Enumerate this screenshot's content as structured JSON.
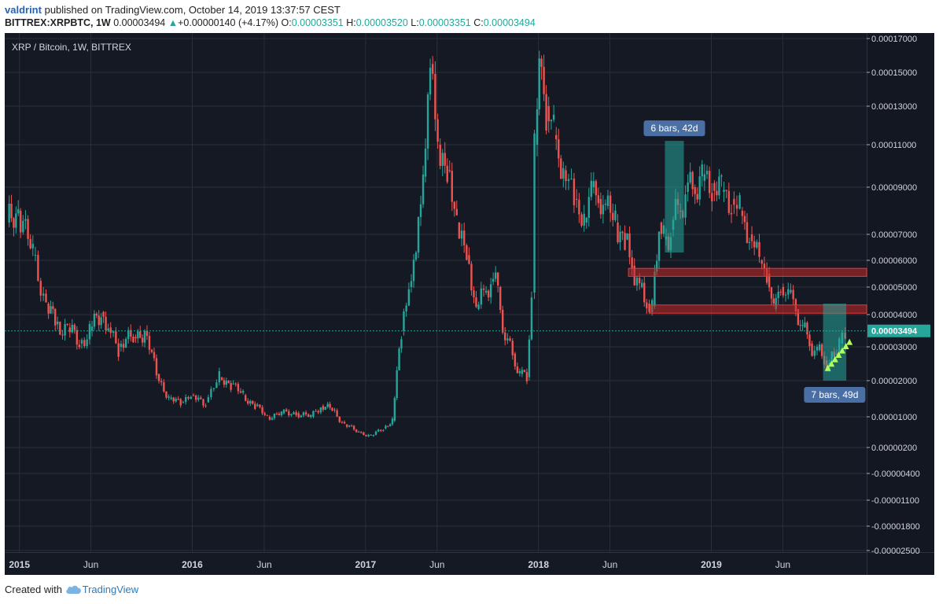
{
  "header": {
    "user": "valdrint",
    "published_text": "published on TradingView.com, October 14, 2019 13:37:57 CEST",
    "symbol": "BITTREX:XRPBTC, 1W",
    "last": "0.00003494",
    "change_arrow": "▲",
    "change": "+0.00000140 (+4.17%)",
    "o_label": "O:",
    "o_value": "0.00003351",
    "h_label": "H:",
    "h_value": "0.00003520",
    "l_label": "L:",
    "l_value": "0.00003351",
    "c_label": "C:",
    "c_value": "0.00003494"
  },
  "footer": {
    "created_with": "Created with",
    "brand": "TradingView",
    "brand_icon": "tradingview-cloud-icon"
  },
  "colors": {
    "background": "#151924",
    "grid": "#2a2e39",
    "up": "#26a69a",
    "down": "#ef5350",
    "zone": "#c62828",
    "box": "#26a69a",
    "label": "#4a6fa5",
    "price_tag": "#26a69a",
    "arrow": "#b2ff59"
  },
  "chart_data": {
    "type": "candlestick",
    "title": "XRP / Bitcoin, 1W, BITTREX",
    "y_scale": "inverted-log",
    "ylim": [
      -2.5e-05,
      0.00018
    ],
    "y_ticks": [
      "0.00017000",
      "0.00015000",
      "0.00013000",
      "0.00011000",
      "0.00009000",
      "0.00007000",
      "0.00006000",
      "0.00005000",
      "0.00004000",
      "0.00003000",
      "0.00002000",
      "0.00001000",
      "0.00000200",
      "-0.00000400",
      "-0.00001100",
      "-0.00001800",
      "-0.00002500"
    ],
    "y_tick_values": [
      0.00017,
      0.00015,
      0.00013,
      0.00011,
      9e-05,
      7e-05,
      6e-05,
      5e-05,
      4e-05,
      3e-05,
      2e-05,
      1e-05,
      2e-06,
      -4e-06,
      -1.1e-05,
      -1.8e-05,
      -2.5e-05
    ],
    "x_ticks": [
      {
        "label": "2015",
        "date": "2015-01-01",
        "bold": true
      },
      {
        "label": "Jun",
        "date": "2015-06-01",
        "bold": false
      },
      {
        "label": "2016",
        "date": "2016-01-01",
        "bold": true
      },
      {
        "label": "Jun",
        "date": "2016-06-01",
        "bold": false
      },
      {
        "label": "2017",
        "date": "2017-01-01",
        "bold": true
      },
      {
        "label": "Jun",
        "date": "2017-06-01",
        "bold": false
      },
      {
        "label": "2018",
        "date": "2018-01-01",
        "bold": true
      },
      {
        "label": "Jun",
        "date": "2018-06-01",
        "bold": false
      },
      {
        "label": "2019",
        "date": "2019-01-01",
        "bold": true
      },
      {
        "label": "Jun",
        "date": "2019-06-01",
        "bold": false
      }
    ],
    "xlim": [
      "2014-12-01",
      "2019-11-25"
    ],
    "price_line": {
      "value": 3.494e-05,
      "label": "0.00003494"
    },
    "series": [
      {
        "x": "2014-12-08",
        "close": 7.5e-05
      },
      {
        "x": "2015-01-01",
        "close": 8e-05
      },
      {
        "x": "2015-02-01",
        "close": 6.2e-05
      },
      {
        "x": "2015-03-01",
        "close": 4.4e-05
      },
      {
        "x": "2015-03-20",
        "close": 3.7e-05
      },
      {
        "x": "2015-04-15",
        "close": 3.6e-05
      },
      {
        "x": "2015-05-10",
        "close": 3.1e-05
      },
      {
        "x": "2015-06-01",
        "close": 3.5e-05
      },
      {
        "x": "2015-06-25",
        "close": 4.1e-05
      },
      {
        "x": "2015-07-10",
        "close": 3.6e-05
      },
      {
        "x": "2015-08-01",
        "close": 3e-05
      },
      {
        "x": "2015-09-01",
        "close": 3.3e-05
      },
      {
        "x": "2015-09-25",
        "close": 3.5e-05
      },
      {
        "x": "2015-10-20",
        "close": 2.2e-05
      },
      {
        "x": "2015-11-15",
        "close": 1.5e-05
      },
      {
        "x": "2015-12-10",
        "close": 1.4e-05
      },
      {
        "x": "2016-01-01",
        "close": 1.6e-05
      },
      {
        "x": "2016-02-01",
        "close": 1.4e-05
      },
      {
        "x": "2016-03-01",
        "close": 2.1e-05
      },
      {
        "x": "2016-03-25",
        "close": 1.9e-05
      },
      {
        "x": "2016-04-20",
        "close": 1.6e-05
      },
      {
        "x": "2016-05-15",
        "close": 1.3e-05
      },
      {
        "x": "2016-06-10",
        "close": 1e-05
      },
      {
        "x": "2016-07-10",
        "close": 1.1e-05
      },
      {
        "x": "2016-08-10",
        "close": 1.1e-05
      },
      {
        "x": "2016-09-10",
        "close": 1e-05
      },
      {
        "x": "2016-10-01",
        "close": 1.3e-05
      },
      {
        "x": "2016-10-25",
        "close": 1.2e-05
      },
      {
        "x": "2016-11-20",
        "close": 8e-06
      },
      {
        "x": "2016-12-20",
        "close": 6e-06
      },
      {
        "x": "2017-01-15",
        "close": 5e-06
      },
      {
        "x": "2017-02-10",
        "close": 7e-06
      },
      {
        "x": "2017-03-01",
        "close": 9e-06
      },
      {
        "x": "2017-03-20",
        "close": 3.5e-05
      },
      {
        "x": "2017-04-05",
        "close": 5e-05
      },
      {
        "x": "2017-04-20",
        "close": 6.3e-05
      },
      {
        "x": "2017-05-05",
        "close": 9.5e-05
      },
      {
        "x": "2017-05-20",
        "close": 0.000155
      },
      {
        "x": "2017-06-05",
        "close": 0.00011
      },
      {
        "x": "2017-06-25",
        "close": 9.8e-05
      },
      {
        "x": "2017-07-15",
        "close": 7.5e-05
      },
      {
        "x": "2017-08-05",
        "close": 6.2e-05
      },
      {
        "x": "2017-08-25",
        "close": 4.2e-05
      },
      {
        "x": "2017-09-10",
        "close": 4.8e-05
      },
      {
        "x": "2017-09-25",
        "close": 5.2e-05
      },
      {
        "x": "2017-10-10",
        "close": 5e-05
      },
      {
        "x": "2017-10-25",
        "close": 3.2e-05
      },
      {
        "x": "2017-11-10",
        "close": 2.8e-05
      },
      {
        "x": "2017-11-25",
        "close": 2.2e-05
      },
      {
        "x": "2017-12-10",
        "close": 2.1e-05
      },
      {
        "x": "2017-12-20",
        "close": 4.8e-05
      },
      {
        "x": "2017-12-27",
        "close": 0.00011
      },
      {
        "x": "2018-01-05",
        "close": 0.000158
      },
      {
        "x": "2018-01-20",
        "close": 0.00013
      },
      {
        "x": "2018-02-05",
        "close": 0.000115
      },
      {
        "x": "2018-02-25",
        "close": 9.8e-05
      },
      {
        "x": "2018-03-20",
        "close": 8.5e-05
      },
      {
        "x": "2018-04-10",
        "close": 7.5e-05
      },
      {
        "x": "2018-04-25",
        "close": 9e-05
      },
      {
        "x": "2018-05-10",
        "close": 8.5e-05
      },
      {
        "x": "2018-05-25",
        "close": 8.2e-05
      },
      {
        "x": "2018-06-15",
        "close": 7.5e-05
      },
      {
        "x": "2018-07-05",
        "close": 6.8e-05
      },
      {
        "x": "2018-07-20",
        "close": 5.8e-05
      },
      {
        "x": "2018-08-05",
        "close": 5e-05
      },
      {
        "x": "2018-08-20",
        "close": 4.4e-05
      },
      {
        "x": "2018-09-01",
        "close": 4.3e-05
      },
      {
        "x": "2018-09-15",
        "close": 7.5e-05
      },
      {
        "x": "2018-09-25",
        "close": 6.8e-05
      },
      {
        "x": "2018-10-10",
        "close": 7.2e-05
      },
      {
        "x": "2018-10-25",
        "close": 8e-05
      },
      {
        "x": "2018-11-10",
        "close": 8.8e-05
      },
      {
        "x": "2018-11-25",
        "close": 9e-05
      },
      {
        "x": "2018-12-15",
        "close": 9.3e-05
      },
      {
        "x": "2019-01-05",
        "close": 9.2e-05
      },
      {
        "x": "2019-01-25",
        "close": 8.8e-05
      },
      {
        "x": "2019-02-15",
        "close": 8.5e-05
      },
      {
        "x": "2019-03-05",
        "close": 8e-05
      },
      {
        "x": "2019-03-25",
        "close": 7e-05
      },
      {
        "x": "2019-04-15",
        "close": 6e-05
      },
      {
        "x": "2019-05-01",
        "close": 5.5e-05
      },
      {
        "x": "2019-05-15",
        "close": 4.2e-05
      },
      {
        "x": "2019-05-30",
        "close": 5e-05
      },
      {
        "x": "2019-06-15",
        "close": 4.8e-05
      },
      {
        "x": "2019-07-01",
        "close": 4.2e-05
      },
      {
        "x": "2019-07-15",
        "close": 3.6e-05
      },
      {
        "x": "2019-07-30",
        "close": 3.1e-05
      },
      {
        "x": "2019-08-15",
        "close": 2.9e-05
      },
      {
        "x": "2019-08-30",
        "close": 2.6e-05
      },
      {
        "x": "2019-09-10",
        "close": 2.5e-05
      },
      {
        "x": "2019-09-20",
        "close": 2.8e-05
      },
      {
        "x": "2019-10-01",
        "close": 3.1e-05
      },
      {
        "x": "2019-10-14",
        "close": 3.494e-05
      }
    ],
    "annotations": [
      {
        "type": "zone",
        "y1": 5.4e-05,
        "y2": 5.7e-05,
        "x1": "2018-07-10",
        "x2": "2019-11-25"
      },
      {
        "type": "zone",
        "y1": 4.05e-05,
        "y2": 4.35e-05,
        "x1": "2018-08-25",
        "x2": "2019-11-25"
      },
      {
        "type": "box",
        "x1": "2018-09-25",
        "x2": "2018-11-04",
        "y1": 6.3e-05,
        "y2": 0.000112,
        "label": "6 bars, 42d",
        "label_pos": "above"
      },
      {
        "type": "box",
        "x1": "2019-08-25",
        "x2": "2019-10-13",
        "y1": 2e-05,
        "y2": 4.4e-05,
        "label": "7 bars, 49d",
        "label_pos": "below"
      }
    ]
  }
}
